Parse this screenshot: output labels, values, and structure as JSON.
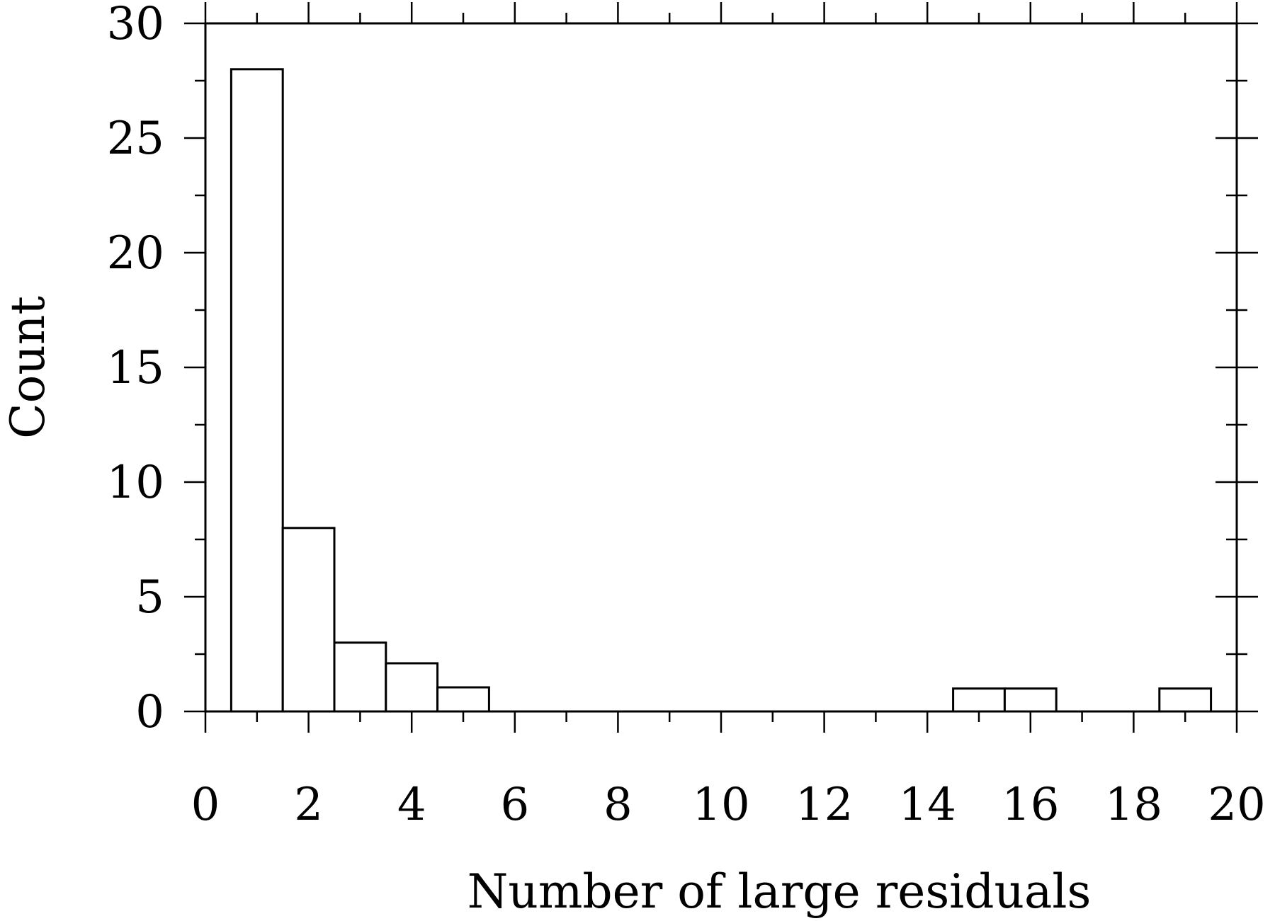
{
  "chart_data": {
    "type": "bar",
    "title": "",
    "xlabel": "Number of large residuals",
    "ylabel": "Count",
    "xlim": [
      0,
      20
    ],
    "ylim": [
      0,
      30
    ],
    "x_ticks": [
      0,
      2,
      4,
      6,
      8,
      10,
      12,
      14,
      16,
      18,
      20
    ],
    "y_ticks": [
      0,
      5,
      10,
      15,
      20,
      25,
      30
    ],
    "grid": false,
    "bins": [
      {
        "x0": 0.5,
        "x1": 1.5,
        "count": 28
      },
      {
        "x0": 1.5,
        "x1": 2.5,
        "count": 8
      },
      {
        "x0": 2.5,
        "x1": 3.5,
        "count": 3
      },
      {
        "x0": 3.5,
        "x1": 4.5,
        "count": 2.1
      },
      {
        "x0": 4.5,
        "x1": 5.5,
        "count": 1.05
      },
      {
        "x0": 14.5,
        "x1": 15.5,
        "count": 1
      },
      {
        "x0": 15.5,
        "x1": 16.5,
        "count": 1
      },
      {
        "x0": 18.5,
        "x1": 19.5,
        "count": 1
      }
    ],
    "colors": {
      "bar_fill": "#ffffff",
      "bar_stroke": "#000000",
      "axis": "#000000"
    }
  }
}
